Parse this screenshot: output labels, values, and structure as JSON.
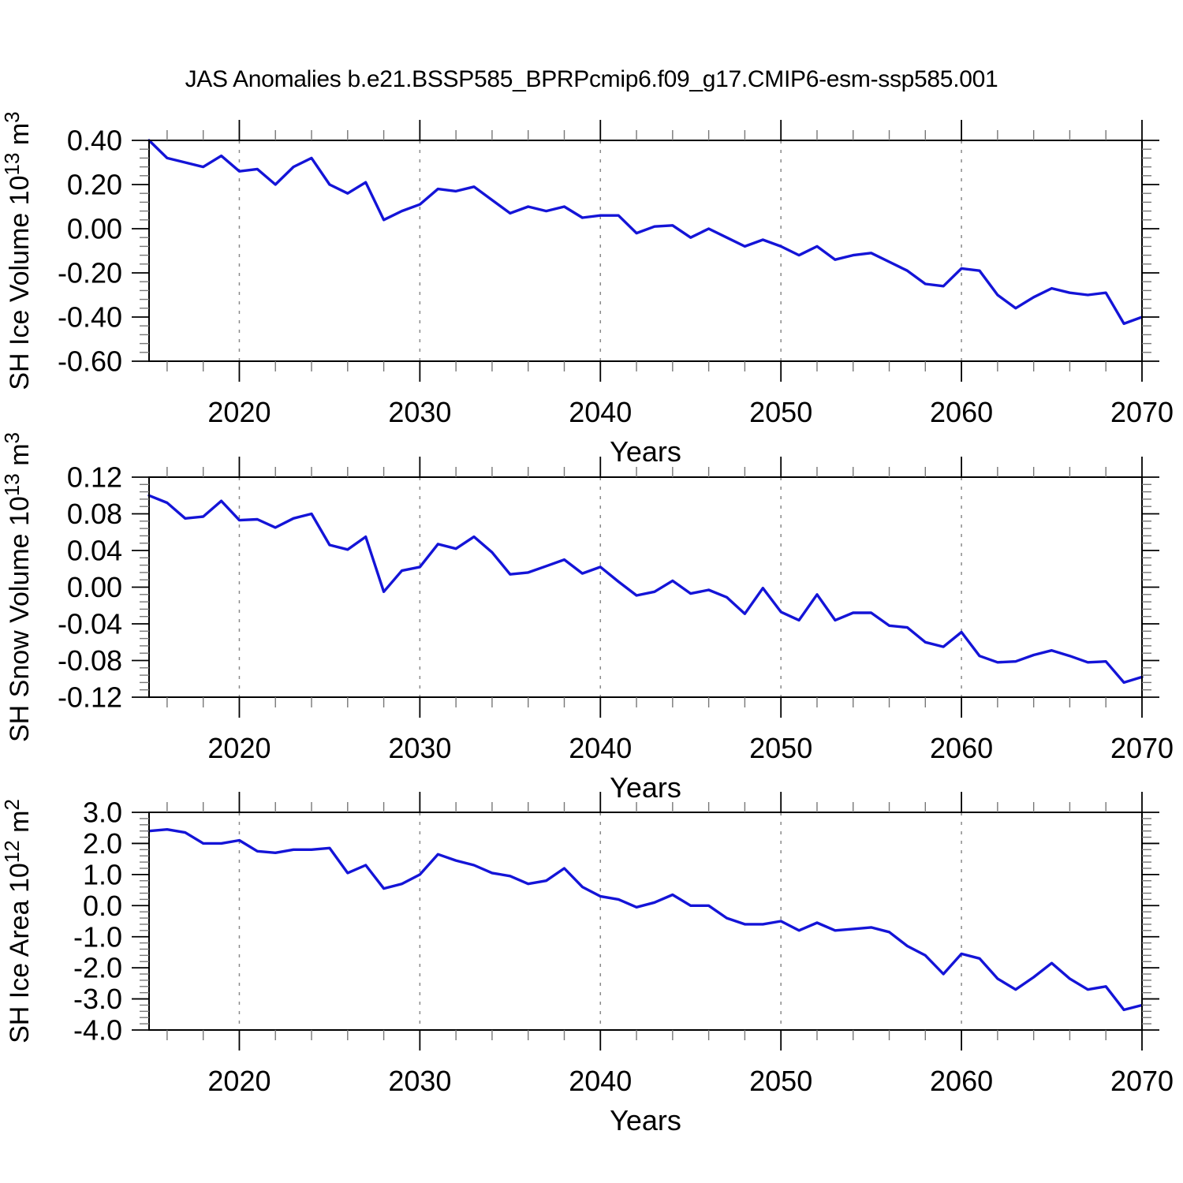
{
  "title": "JAS Anomalies b.e21.BSSP585_BPRPcmip6.f09_g17.CMIP6-esm-ssp585.001",
  "colors": {
    "line": "#1414d7",
    "grid": "#8a8a8a",
    "axis": "#000000",
    "minor_tick": "#777777",
    "text": "#000000",
    "background": "#ffffff"
  },
  "years": [
    2015,
    2016,
    2017,
    2018,
    2019,
    2020,
    2021,
    2022,
    2023,
    2024,
    2025,
    2026,
    2027,
    2028,
    2029,
    2030,
    2031,
    2032,
    2033,
    2034,
    2035,
    2036,
    2037,
    2038,
    2039,
    2040,
    2041,
    2042,
    2043,
    2044,
    2045,
    2046,
    2047,
    2048,
    2049,
    2050,
    2051,
    2052,
    2053,
    2054,
    2055,
    2056,
    2057,
    2058,
    2059,
    2060,
    2061,
    2062,
    2063,
    2064,
    2065,
    2066,
    2067,
    2068,
    2069,
    2070
  ],
  "x_axis": {
    "label": "Years",
    "range": [
      2015,
      2070
    ],
    "major_ticks": [
      2020,
      2030,
      2040,
      2050,
      2060,
      2070
    ],
    "major_tick_labels": [
      "2020",
      "2030",
      "2040",
      "2050",
      "2060",
      "2070"
    ],
    "minor_tick_step": 2,
    "grid_years": [
      2020,
      2030,
      2040,
      2050,
      2060
    ],
    "grid_style": "dashed"
  },
  "chart_data": [
    {
      "type": "line",
      "id": "sh-ice-volume",
      "ylabel": "SH Ice Volume 10¹³ m³",
      "ylabel_parts": [
        {
          "text": "SH Ice Volume 10"
        },
        {
          "text": "13",
          "sup": true
        },
        {
          "text": " m"
        },
        {
          "text": "3",
          "sup": true
        }
      ],
      "xlabel": "Years",
      "ylim": [
        -0.6,
        0.4
      ],
      "y_major_ticks": [
        0.4,
        0.2,
        0.0,
        -0.2,
        -0.4,
        -0.6
      ],
      "y_major_tick_labels": [
        "0.40",
        "0.20",
        "0.00",
        "-0.20",
        "-0.40",
        "-0.60"
      ],
      "y_minor_step": 0.04,
      "values": [
        0.4,
        0.32,
        0.3,
        0.28,
        0.33,
        0.26,
        0.27,
        0.2,
        0.28,
        0.32,
        0.2,
        0.16,
        0.21,
        0.04,
        0.08,
        0.11,
        0.18,
        0.17,
        0.19,
        0.13,
        0.07,
        0.1,
        0.08,
        0.1,
        0.05,
        0.06,
        0.06,
        -0.02,
        0.01,
        0.015,
        -0.04,
        0.0,
        -0.04,
        -0.08,
        -0.05,
        -0.08,
        -0.12,
        -0.08,
        -0.14,
        -0.12,
        -0.11,
        -0.15,
        -0.19,
        -0.25,
        -0.26,
        -0.18,
        -0.19,
        -0.3,
        -0.36,
        -0.31,
        -0.27,
        -0.29,
        -0.3,
        -0.29,
        -0.43,
        -0.4
      ]
    },
    {
      "type": "line",
      "id": "sh-snow-volume",
      "ylabel": "SH Snow Volume 10¹³ m³",
      "ylabel_parts": [
        {
          "text": "SH Snow Volume 10"
        },
        {
          "text": "13",
          "sup": true
        },
        {
          "text": " m"
        },
        {
          "text": "3",
          "sup": true
        }
      ],
      "xlabel": "Years",
      "ylim": [
        -0.12,
        0.12
      ],
      "y_major_ticks": [
        0.12,
        0.08,
        0.04,
        0.0,
        -0.04,
        -0.08,
        -0.12
      ],
      "y_major_tick_labels": [
        "0.12",
        "0.08",
        "0.04",
        "0.00",
        "-0.04",
        "-0.08",
        "-0.12"
      ],
      "y_minor_step": 0.008,
      "values": [
        0.1,
        0.092,
        0.075,
        0.077,
        0.094,
        0.073,
        0.074,
        0.065,
        0.075,
        0.08,
        0.046,
        0.041,
        0.055,
        -0.005,
        0.018,
        0.022,
        0.047,
        0.042,
        0.055,
        0.038,
        0.014,
        0.016,
        0.023,
        0.03,
        0.015,
        0.022,
        0.006,
        -0.009,
        -0.005,
        0.007,
        -0.007,
        -0.003,
        -0.011,
        -0.029,
        -0.001,
        -0.027,
        -0.036,
        -0.008,
        -0.036,
        -0.028,
        -0.028,
        -0.042,
        -0.044,
        -0.06,
        -0.065,
        -0.049,
        -0.075,
        -0.082,
        -0.081,
        -0.074,
        -0.069,
        -0.075,
        -0.082,
        -0.081,
        -0.104,
        -0.098
      ]
    },
    {
      "type": "line",
      "id": "sh-ice-area",
      "ylabel": "SH Ice Area 10¹² m²",
      "ylabel_parts": [
        {
          "text": "SH Ice Area 10"
        },
        {
          "text": "12",
          "sup": true
        },
        {
          "text": " m"
        },
        {
          "text": "2",
          "sup": true
        }
      ],
      "xlabel": "Years",
      "ylim": [
        -4.0,
        3.0
      ],
      "y_major_ticks": [
        3.0,
        2.0,
        1.0,
        0.0,
        -1.0,
        -2.0,
        -3.0,
        -4.0
      ],
      "y_major_tick_labels": [
        "3.0",
        "2.0",
        "1.0",
        "0.0",
        "-1.0",
        "-2.0",
        "-3.0",
        "-4.0"
      ],
      "y_minor_step": 0.2,
      "values": [
        2.4,
        2.45,
        2.35,
        2.0,
        2.0,
        2.1,
        1.75,
        1.7,
        1.8,
        1.8,
        1.85,
        1.05,
        1.3,
        0.55,
        0.7,
        1.0,
        1.65,
        1.45,
        1.3,
        1.05,
        0.95,
        0.7,
        0.8,
        1.2,
        0.6,
        0.3,
        0.2,
        -0.05,
        0.1,
        0.35,
        0.0,
        0.0,
        -0.4,
        -0.6,
        -0.6,
        -0.5,
        -0.8,
        -0.55,
        -0.8,
        -0.75,
        -0.7,
        -0.85,
        -1.3,
        -1.6,
        -2.2,
        -1.55,
        -1.7,
        -2.35,
        -2.7,
        -2.3,
        -1.85,
        -2.35,
        -2.7,
        -2.6,
        -3.35,
        -3.2
      ]
    }
  ]
}
